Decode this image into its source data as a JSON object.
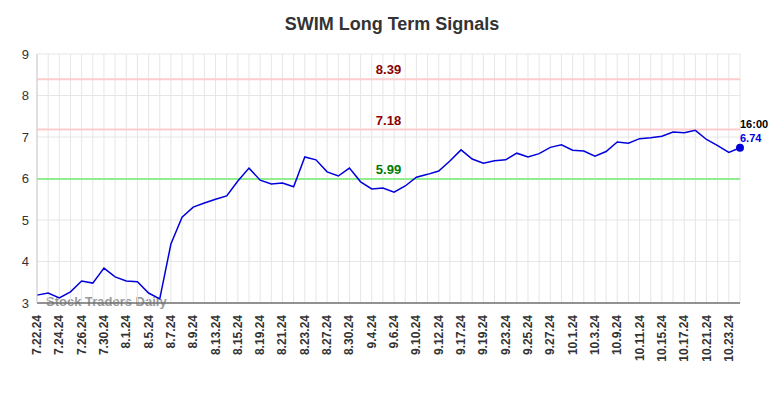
{
  "chart_data": {
    "type": "line",
    "title": "SWIM Long Term Signals",
    "categories": [
      "7.22.24",
      null,
      "7.24.24",
      null,
      "7.26.24",
      null,
      "7.30.24",
      null,
      "8.1.24",
      null,
      "8.5.24",
      null,
      "8.7.24",
      null,
      "8.9.24",
      null,
      "8.13.24",
      null,
      "8.15.24",
      null,
      "8.19.24",
      null,
      "8.21.24",
      null,
      "8.23.24",
      null,
      "8.27.24",
      null,
      "8.30.24",
      null,
      "9.4.24",
      null,
      "9.6.24",
      null,
      "9.10.24",
      null,
      "9.12.24",
      null,
      "9.17.24",
      null,
      "9.19.24",
      null,
      "9.23.24",
      null,
      "9.25.24",
      null,
      "9.27.24",
      null,
      "10.1.24",
      null,
      "10.3.24",
      null,
      "10.9.24",
      null,
      "10.11.24",
      null,
      "10.15.24",
      null,
      "10.17.24",
      null,
      "10.21.24",
      null,
      "10.23.24",
      null
    ],
    "series": [
      {
        "name": "SWIM",
        "color": "#0000dd",
        "values": [
          3.19,
          3.24,
          3.12,
          3.27,
          3.53,
          3.48,
          3.84,
          3.63,
          3.53,
          3.51,
          3.24,
          3.1,
          4.42,
          5.07,
          5.31,
          5.41,
          5.5,
          5.58,
          5.94,
          6.25,
          5.96,
          5.87,
          5.89,
          5.8,
          6.52,
          6.45,
          6.16,
          6.06,
          6.25,
          5.92,
          5.75,
          5.77,
          5.67,
          5.82,
          6.03,
          6.1,
          6.18,
          6.42,
          6.69,
          6.47,
          6.37,
          6.43,
          6.45,
          6.61,
          6.52,
          6.6,
          6.75,
          6.81,
          6.68,
          6.66,
          6.54,
          6.65,
          6.88,
          6.85,
          6.96,
          6.98,
          7.02,
          7.12,
          7.1,
          7.16,
          6.94,
          6.79,
          6.63,
          6.74
        ]
      }
    ],
    "levels": [
      {
        "value": 8.39,
        "color": "#ffcccc"
      },
      {
        "value": 7.18,
        "color": "#ffcccc"
      },
      {
        "value": 5.99,
        "color": "#90ee90"
      }
    ],
    "annotations": [
      "16:00",
      "Stock Traders Daily"
    ],
    "ylim": [
      3,
      9
    ],
    "yticks": [
      3,
      4,
      5,
      6,
      7,
      8,
      9
    ],
    "grid": true
  }
}
